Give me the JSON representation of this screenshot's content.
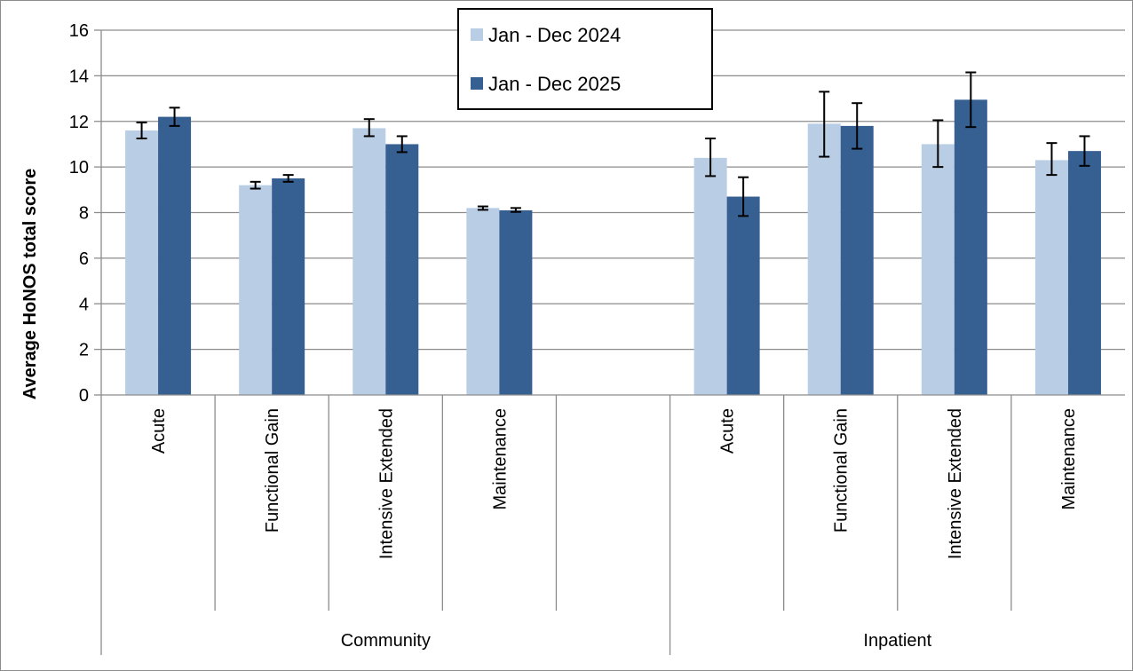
{
  "chart_data": {
    "type": "bar",
    "ylabel": "Average HoNOS total score",
    "ylim": [
      0,
      16
    ],
    "yticks": [
      0,
      2,
      4,
      6,
      8,
      10,
      12,
      14,
      16
    ],
    "grid": true,
    "legend_position": "top-center",
    "groups": [
      {
        "label": "Community",
        "categories": [
          "Acute",
          "Functional Gain",
          "Intensive Extended",
          "Maintenance",
          ""
        ]
      },
      {
        "label": "Inpatient",
        "categories": [
          "Acute",
          "Functional Gain",
          "Intensive Extended",
          "Maintenance"
        ]
      }
    ],
    "series": [
      {
        "name": "Jan - Dec 2024",
        "color": "#b9cde5",
        "values": [
          11.6,
          9.2,
          11.7,
          8.2,
          null,
          10.4,
          11.9,
          11.0,
          10.3
        ],
        "err_low": [
          11.25,
          9.05,
          11.35,
          8.12,
          null,
          9.6,
          10.45,
          10.0,
          9.65
        ],
        "err_high": [
          11.95,
          9.35,
          12.1,
          8.27,
          null,
          11.25,
          13.3,
          12.05,
          11.05
        ]
      },
      {
        "name": "Jan - Dec 2025",
        "color": "#376092",
        "values": [
          12.2,
          9.5,
          11.0,
          8.1,
          null,
          8.7,
          11.8,
          12.95,
          10.7
        ],
        "err_low": [
          11.8,
          9.35,
          10.65,
          8.03,
          null,
          7.85,
          10.8,
          11.75,
          10.05
        ],
        "err_high": [
          12.6,
          9.65,
          11.35,
          8.2,
          null,
          9.55,
          12.8,
          14.15,
          11.35
        ]
      }
    ]
  }
}
